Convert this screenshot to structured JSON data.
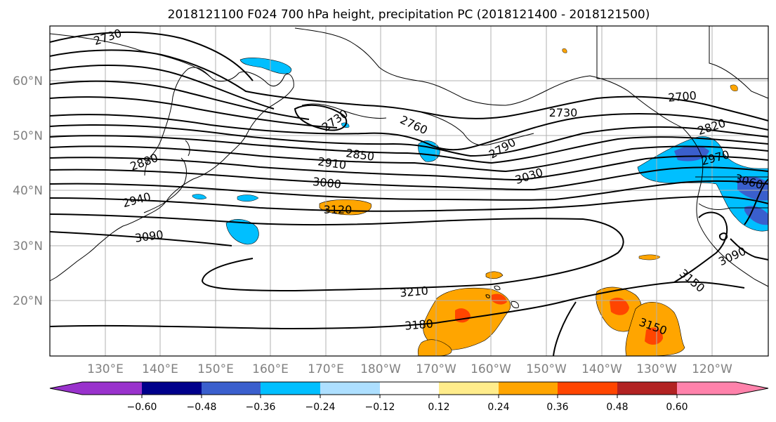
{
  "title": "2018121100 F024 700 hPa height, precipitation PC (2018121400 - 2018121500)",
  "lat_labels": [
    "60°N",
    "50°N",
    "40°N",
    "30°N",
    "20°N"
  ],
  "lon_labels": [
    "130°E",
    "140°E",
    "150°E",
    "160°E",
    "170°E",
    "180°W",
    "170°W",
    "160°W",
    "150°W",
    "140°W",
    "130°W",
    "120°W"
  ],
  "contour_labels": [
    "2730",
    "2880",
    "2940",
    "3090",
    "2730",
    "2760",
    "2850",
    "2910",
    "3000",
    "3120",
    "2790",
    "2730",
    "3030",
    "3210",
    "3180",
    "2700",
    "2820",
    "2970",
    "3060",
    "3090",
    "3150",
    "3150"
  ],
  "colorbar": {
    "ticks": [
      "−0.60",
      "−0.48",
      "−0.36",
      "−0.24",
      "−0.12",
      "0.12",
      "0.24",
      "0.36",
      "0.48",
      "0.60"
    ],
    "colors": [
      "#9932CC",
      "#00008B",
      "#3A5FCD",
      "#00BFFF",
      "#ADDFFF",
      "#FFFFFF",
      "#FFEC8B",
      "#FFA500",
      "#FF4500",
      "#B22222",
      "#FF82AB"
    ]
  }
}
